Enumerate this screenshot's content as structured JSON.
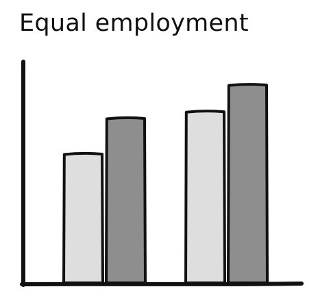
{
  "title": "Equal employment",
  "chart_data": {
    "type": "bar",
    "title": "Equal employment",
    "categories": [
      "",
      ""
    ],
    "series": [
      {
        "values": [
          58,
          77
        ]
      },
      {
        "values": [
          74,
          89
        ]
      }
    ],
    "ylim": [
      0,
      100
    ],
    "xlabel": "",
    "ylabel": "",
    "grid": false,
    "colors": [
      "#dedede",
      "#8e8e8e"
    ],
    "outline_color": "#111111"
  }
}
